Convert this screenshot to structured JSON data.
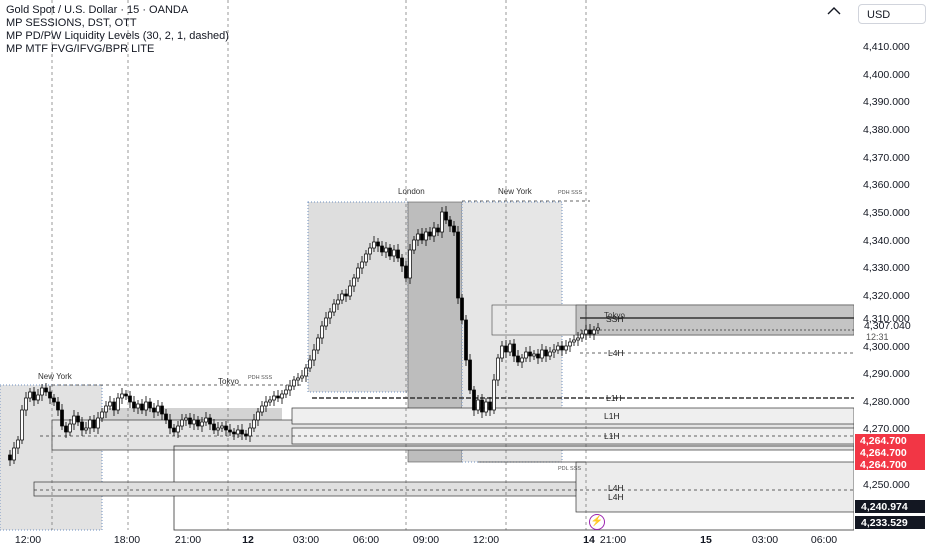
{
  "legend": {
    "title": "Gold Spot / U.S. Dollar · 15 · OANDA",
    "indicators": [
      "MP SESSIONS, DST, OTT",
      "MP PD/PW Liquidity Levels (30, 2, 1, dashed)",
      "MP MTF FVG/IFVG/BPR LITE"
    ]
  },
  "currency_button": "USD",
  "price_axis": {
    "ticks": [
      "4,410.000",
      "4,400.000",
      "4,390.000",
      "4,380.000",
      "4,370.000",
      "4,360.000",
      "4,350.000",
      "4,340.000",
      "4,330.000",
      "4,320.000",
      "4,310.000",
      "4,300.000",
      "4,290.000",
      "4,280.000",
      "4,270.000",
      "4,250.000"
    ],
    "current_price": "4,307.040",
    "countdown": "12:31",
    "red_labels": [
      "4,264.700",
      "4,264.700",
      "4,264.700"
    ],
    "black_labels": [
      "4,240.974",
      "4,233.529"
    ]
  },
  "time_axis": [
    "12:00",
    "18:00",
    "21:00",
    "12",
    "03:00",
    "06:00",
    "09:00",
    "12:00",
    "14",
    "21:00",
    "15",
    "03:00",
    "06:00"
  ],
  "sessions": {
    "new_york_1": "New York",
    "tokyo": "Tokyo",
    "london": "London",
    "new_york_2": "New York",
    "tokyo_2": "Tokyo"
  },
  "liquidity": {
    "pdh_1": "PDH SSS",
    "pdh_2": "PDH SSS",
    "pdl": "PDL SSS",
    "ssh": "SSH"
  },
  "fvg_labels": {
    "l4h_top": "L4H",
    "l1h_1": "L1H",
    "l1h_2": "L1H",
    "l1h_3": "L1H",
    "l4h_b1": "L4H",
    "l4h_b2": "L4H"
  },
  "colors": {
    "up": "#ffffff",
    "down": "#000000",
    "red_label": "#f23645",
    "session_fill": "#d7d7d7",
    "session_border": "#5b8fd8"
  },
  "icons": {
    "collapse": "chevron-up-icon",
    "bolt": "lightning-icon"
  }
}
